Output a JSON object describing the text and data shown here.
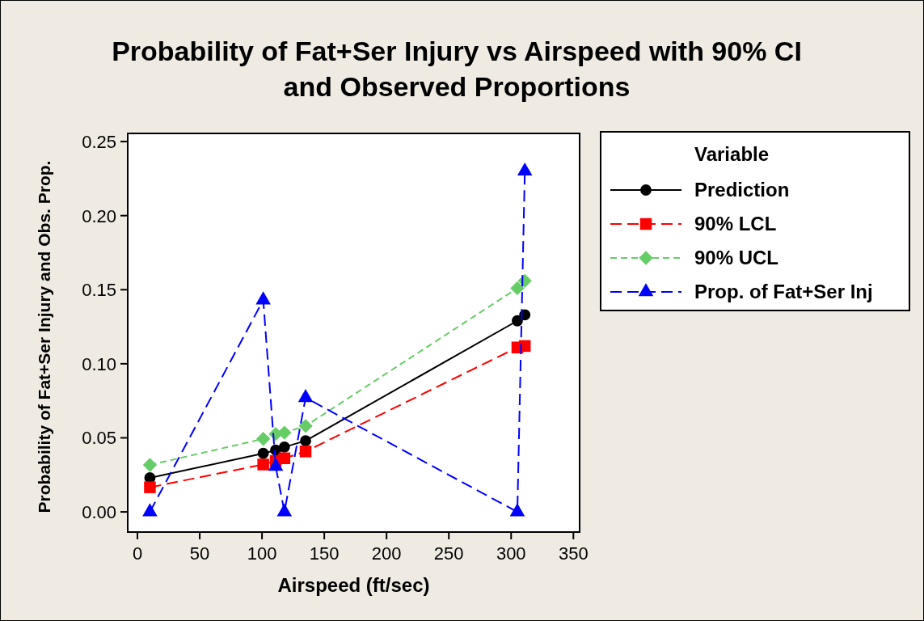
{
  "chart_data": {
    "type": "line",
    "title": "Probability of Fat+Ser Injury vs Airspeed with 90% CI\nand Observed Proportions",
    "xlabel": "Airspeed (ft/sec)",
    "ylabel": "Probability of Fat+Ser Injury and Obs. Prop.",
    "legend_title": "Variable",
    "legend": "right",
    "grid": false,
    "x": [
      10,
      101,
      111,
      118,
      135,
      305,
      311
    ],
    "xlim": [
      -7.8,
      355
    ],
    "xticks": [
      0,
      50,
      100,
      150,
      200,
      250,
      300,
      350
    ],
    "ylim": [
      -0.0136,
      0.2555
    ],
    "yticks": [
      {
        "value": 0,
        "label": "0.00"
      },
      {
        "value": 0.05,
        "label": "0.05"
      },
      {
        "value": 0.1,
        "label": "0.10"
      },
      {
        "value": 0.15,
        "label": "0.15"
      },
      {
        "value": 0.2,
        "label": "0.20"
      },
      {
        "value": 0.25,
        "label": "0.25"
      }
    ],
    "series": [
      {
        "name": "Prediction",
        "color": "#000000",
        "marker": "circle",
        "line_style": "solid",
        "values": [
          0.023,
          0.0395,
          0.0417,
          0.0438,
          0.048,
          0.129,
          0.133
        ]
      },
      {
        "name": "90% LCL",
        "color": "#ff0000",
        "marker": "square",
        "line_style": "dashed",
        "values": [
          0.0166,
          0.032,
          0.0344,
          0.0362,
          0.0408,
          0.111,
          0.112
        ]
      },
      {
        "name": "90% UCL",
        "color": "#66cc66",
        "marker": "diamond",
        "line_style": "dashed",
        "values": [
          0.0317,
          0.0493,
          0.0526,
          0.0535,
          0.058,
          0.151,
          0.156
        ]
      },
      {
        "name": "Prop. of Fat+Ser Inj",
        "color": "#0000ff",
        "marker": "triangle",
        "line_style": "dashed",
        "values": [
          0,
          0.143,
          0.0307,
          0,
          0.0771,
          0,
          0.23
        ]
      }
    ]
  }
}
